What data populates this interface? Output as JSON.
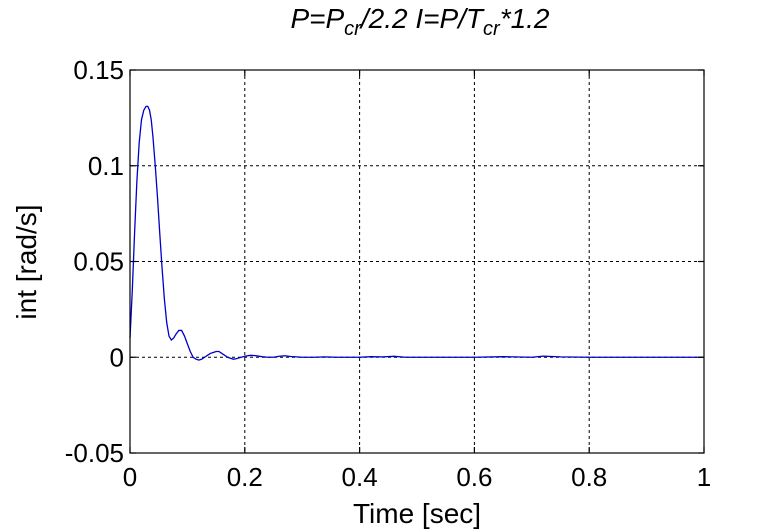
{
  "chart_data": {
    "type": "line",
    "title": {
      "parts": [
        {
          "text": "P=P",
          "sub": false
        },
        {
          "text": "cr",
          "sub": true
        },
        {
          "text": "/2.2  I=P/T",
          "sub": false
        },
        {
          "text": "cr",
          "sub": true
        },
        {
          "text": "*1.2",
          "sub": false
        }
      ]
    },
    "xlabel": "Time [sec]",
    "ylabel": "int [rad/s]",
    "xlim": [
      0,
      1
    ],
    "ylim": [
      -0.05,
      0.15
    ],
    "xticks": [
      0,
      0.2,
      0.4,
      0.6,
      0.8,
      1
    ],
    "xtick_labels": [
      "0",
      "0.2",
      "0.4",
      "0.6",
      "0.8",
      "1"
    ],
    "yticks": [
      -0.05,
      0,
      0.05,
      0.1,
      0.15
    ],
    "ytick_labels": [
      "-0.05",
      "0",
      "0.05",
      "0.1",
      "0.15"
    ],
    "grid": true,
    "series": [
      {
        "color": "#0000cc",
        "x": [
          0,
          0.004,
          0.008,
          0.012,
          0.016,
          0.02,
          0.024,
          0.028,
          0.031,
          0.034,
          0.037,
          0.04,
          0.044,
          0.048,
          0.052,
          0.056,
          0.06,
          0.064,
          0.068,
          0.072,
          0.076,
          0.08,
          0.085,
          0.09,
          0.095,
          0.1,
          0.105,
          0.11,
          0.115,
          0.12,
          0.125,
          0.13,
          0.135,
          0.14,
          0.145,
          0.15,
          0.155,
          0.16,
          0.165,
          0.17,
          0.175,
          0.18,
          0.185,
          0.19,
          0.2,
          0.21,
          0.22,
          0.23,
          0.24,
          0.25,
          0.26,
          0.27,
          0.28,
          0.3,
          0.32,
          0.34,
          0.36,
          0.38,
          0.4,
          0.42,
          0.44,
          0.46,
          0.48,
          0.5,
          0.55,
          0.6,
          0.65,
          0.7,
          0.72,
          0.75,
          0.8,
          0.85,
          0.9,
          0.95,
          1.0
        ],
        "y": [
          0.01,
          0.035,
          0.065,
          0.092,
          0.112,
          0.124,
          0.129,
          0.131,
          0.131,
          0.129,
          0.124,
          0.115,
          0.1,
          0.083,
          0.064,
          0.046,
          0.03,
          0.018,
          0.011,
          0.009,
          0.01,
          0.012,
          0.014,
          0.014,
          0.011,
          0.007,
          0.003,
          0.0,
          -0.001,
          -0.0015,
          -0.001,
          0.0,
          0.001,
          0.002,
          0.0025,
          0.003,
          0.003,
          0.002,
          0.001,
          0.0,
          -0.0005,
          -0.001,
          -0.0008,
          -0.0003,
          0.0005,
          0.001,
          0.0008,
          0.0003,
          0.0,
          0.0,
          0.0005,
          0.0008,
          0.0004,
          0.0,
          0.0,
          0.0002,
          0.0,
          0.0,
          0.0,
          0.0003,
          0.0002,
          0.0005,
          0.0,
          0.0,
          0.0,
          0.0,
          0.0003,
          0.0,
          0.0006,
          0.0002,
          0.0,
          0.0,
          0.0,
          0.0,
          0.0
        ]
      }
    ]
  }
}
